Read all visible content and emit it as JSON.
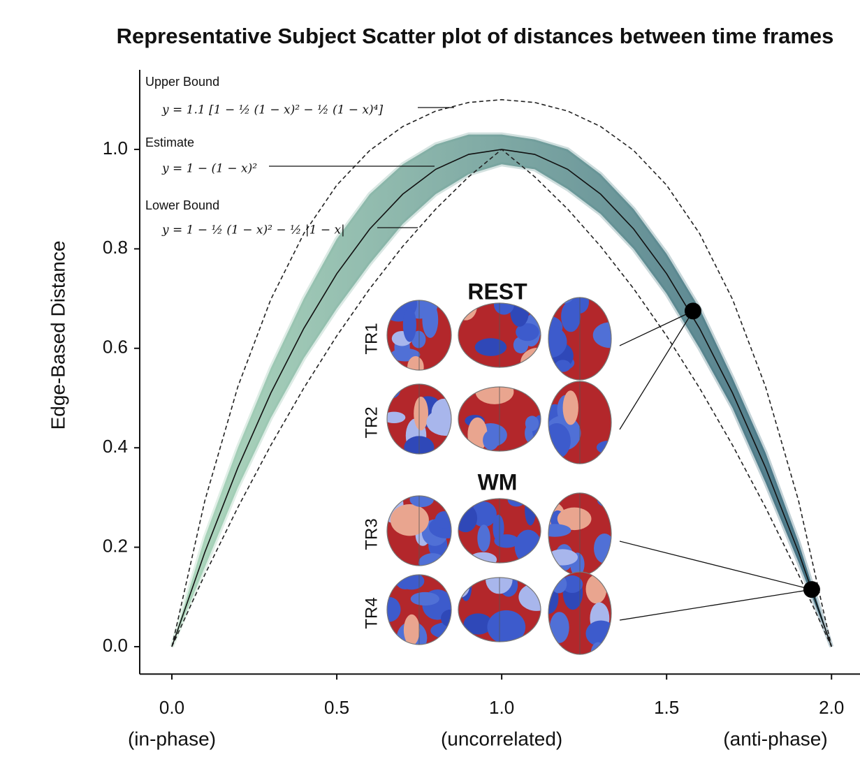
{
  "chart_data": {
    "type": "scatter",
    "title": "Representative Subject Scatter plot of distances between time frames",
    "y_label": "Edge-Based Distance",
    "xlim": [
      -0.1,
      2.08
    ],
    "ylim": [
      -0.055,
      1.16
    ],
    "xticks": [
      {
        "value": 0,
        "label": "0.0"
      },
      0.5,
      {
        "value": 1,
        "label": "1.0"
      },
      1.5,
      {
        "value": 2,
        "label": "2.0"
      }
    ],
    "x_sublabels": [
      {
        "value": 0,
        "label": "(in-phase)"
      },
      {
        "value": 1,
        "label": "(uncorrelated)"
      },
      {
        "value": 2,
        "label": "(anti-phase)"
      }
    ],
    "yticks": [
      {
        "value": 0,
        "label": "0.0"
      },
      0.2,
      0.4,
      0.6,
      0.8,
      {
        "value": 1,
        "label": "1.0"
      }
    ],
    "x": [
      0,
      0.1,
      0.2,
      0.3,
      0.4,
      0.5,
      0.6,
      0.7,
      0.8,
      0.9,
      1,
      1.1,
      1.2,
      1.3,
      1.4,
      1.5,
      1.6,
      1.7,
      1.8,
      1.9,
      2
    ],
    "cloud": {
      "colors": [
        "#a3d3b4",
        "#2c5f74"
      ],
      "high": [
        0,
        0.22,
        0.4,
        0.56,
        0.7,
        0.82,
        0.91,
        0.97,
        1.01,
        1.03,
        1.03,
        1.02,
        1.0,
        0.95,
        0.88,
        0.79,
        0.68,
        0.54,
        0.39,
        0.21,
        0
      ],
      "low": [
        0,
        0.16,
        0.32,
        0.46,
        0.58,
        0.68,
        0.77,
        0.85,
        0.91,
        0.95,
        0.97,
        0.96,
        0.92,
        0.87,
        0.8,
        0.71,
        0.6,
        0.48,
        0.33,
        0.17,
        0
      ]
    },
    "series": [
      {
        "name": "Upper Bound",
        "formula": "y = 1.1 [1 − ½ (1 − x)² − ½ (1 − x)⁴]",
        "color": "#222222",
        "dashed": true,
        "values": [
          0,
          0.2936,
          0.5227,
          0.6984,
          0.8307,
          0.9281,
          0.9979,
          1.046,
          1.0771,
          1.0944,
          1.1,
          1.0944,
          1.0771,
          1.046,
          0.9979,
          0.9281,
          0.8307,
          0.6984,
          0.5227,
          0.2936,
          0
        ]
      },
      {
        "name": "Estimate",
        "formula": "y = 1 − (1 − x)²",
        "color": "#111111",
        "dashed": false,
        "values": [
          0,
          0.19,
          0.36,
          0.51,
          0.64,
          0.75,
          0.84,
          0.91,
          0.96,
          0.99,
          1,
          0.99,
          0.96,
          0.91,
          0.84,
          0.75,
          0.64,
          0.51,
          0.36,
          0.19,
          0
        ]
      },
      {
        "name": "Lower Bound",
        "formula": "y = 1 − ½ (1 − x)² − ½ |1 − x|",
        "color": "#222222",
        "dashed": true,
        "values": [
          0,
          0.145,
          0.28,
          0.405,
          0.52,
          0.625,
          0.72,
          0.805,
          0.88,
          0.945,
          1,
          0.945,
          0.88,
          0.805,
          0.72,
          0.625,
          0.52,
          0.405,
          0.28,
          0.145,
          0
        ]
      }
    ],
    "highlights": {
      "x": [
        1.58,
        1.94
      ],
      "values": [
        0.675,
        0.115
      ],
      "color": "#000000"
    },
    "inset": {
      "groups": [
        {
          "title": "REST",
          "rows": [
            "TR1",
            "TR2"
          ]
        },
        {
          "title": "WM",
          "rows": [
            "TR3",
            "TR4"
          ]
        }
      ]
    }
  }
}
